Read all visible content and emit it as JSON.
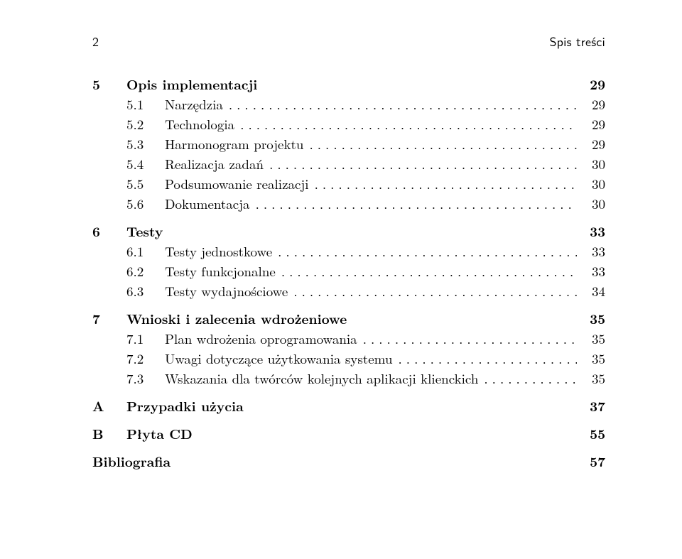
{
  "header": {
    "page_number": "2",
    "running_title": "Spis treści"
  },
  "typography": {
    "body_font": "serif",
    "header_font": "sans-serif",
    "body_size_pt": 14,
    "header_size_pt": 13,
    "text_color": "#000000",
    "background_color": "#ffffff"
  },
  "sections": [
    {
      "number": "5",
      "title": "Opis implementacji",
      "page": "29",
      "entries": [
        {
          "num": "5.1",
          "label": "Narzędzia",
          "page": "29"
        },
        {
          "num": "5.2",
          "label": "Technologia",
          "page": "29"
        },
        {
          "num": "5.3",
          "label": "Harmonogram projektu",
          "page": "29"
        },
        {
          "num": "5.4",
          "label": "Realizacja zadań",
          "page": "30"
        },
        {
          "num": "5.5",
          "label": "Podsumowanie realizacji",
          "page": "30"
        },
        {
          "num": "5.6",
          "label": "Dokumentacja",
          "page": "30"
        }
      ]
    },
    {
      "number": "6",
      "title": "Testy",
      "page": "33",
      "entries": [
        {
          "num": "6.1",
          "label": "Testy jednostkowe",
          "page": "33"
        },
        {
          "num": "6.2",
          "label": "Testy funkcjonalne",
          "page": "33"
        },
        {
          "num": "6.3",
          "label": "Testy wydajnościowe",
          "page": "34"
        }
      ]
    },
    {
      "number": "7",
      "title": "Wnioski i zalecenia wdrożeniowe",
      "page": "35",
      "entries": [
        {
          "num": "7.1",
          "label": "Plan wdrożenia oprogramowania",
          "page": "35"
        },
        {
          "num": "7.2",
          "label": "Uwagi dotyczące użytkowania systemu",
          "page": "35"
        },
        {
          "num": "7.3",
          "label": "Wskazania dla twórców kolejnych aplikacji klienckich",
          "page": "35"
        }
      ]
    },
    {
      "number": "A",
      "title": "Przypadki użycia",
      "page": "37",
      "entries": []
    },
    {
      "number": "B",
      "title": "Płyta CD",
      "page": "55",
      "entries": []
    },
    {
      "number": "",
      "title": "Bibliografia",
      "page": "57",
      "entries": []
    }
  ],
  "dot_leader": "................................................................................"
}
